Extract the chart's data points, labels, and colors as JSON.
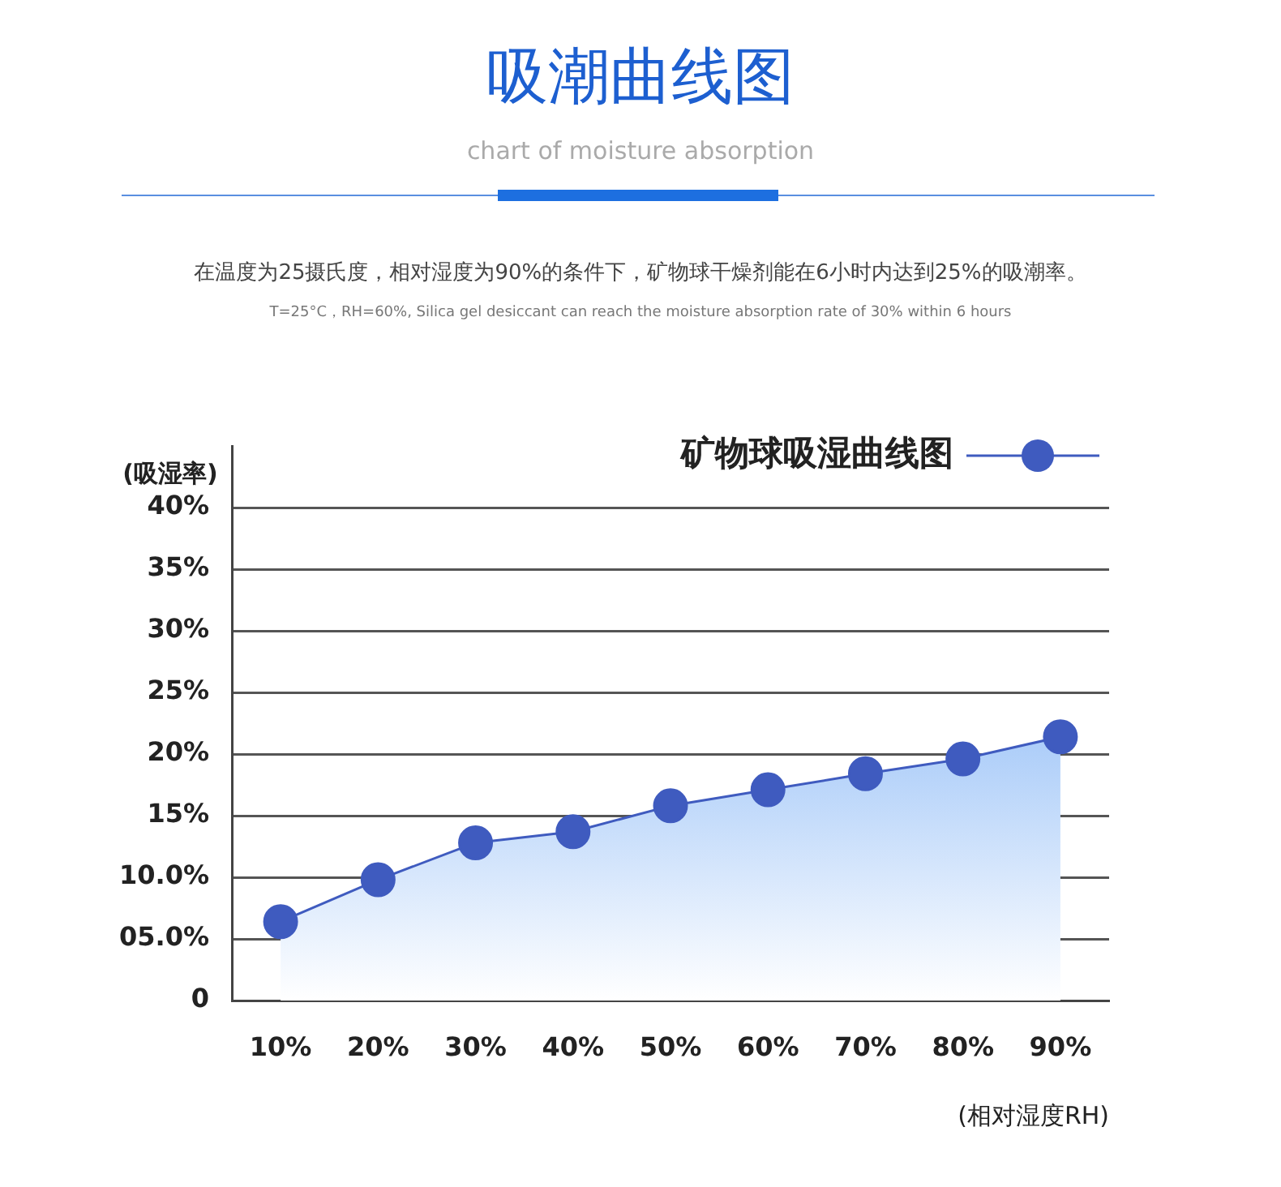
{
  "chart_data": {
    "type": "area",
    "title": "吸潮曲线图",
    "subtitle": "chart of moisture absorption",
    "annotations": [
      "在温度为25摄氏度，相对湿度为90%的条件下，矿物球干燥剂能在6小时内达到25%的吸潮率。",
      "T=25°C，RH=60%, Silica gel desiccant can reach the moisture absorption rate of 30% within 6 hours"
    ],
    "xlabel": "(相对湿度RH)",
    "ylabel": "(吸湿率)",
    "categories": [
      "10%",
      "20%",
      "30%",
      "40%",
      "50%",
      "60%",
      "70%",
      "80%",
      "90%"
    ],
    "series": [
      {
        "name": "矿物球吸湿曲线图",
        "color": "#3f5bbf",
        "values": [
          6.4,
          9.8,
          12.8,
          13.7,
          15.8,
          17.1,
          18.4,
          19.6,
          21.4
        ]
      }
    ],
    "ylim": [
      0,
      45
    ],
    "yticks": [
      {
        "value": 0,
        "label": "0"
      },
      {
        "value": 5,
        "label": "05.0%"
      },
      {
        "value": 10,
        "label": "10.0%"
      },
      {
        "value": 15,
        "label": "15%"
      },
      {
        "value": 20,
        "label": "20%"
      },
      {
        "value": 25,
        "label": "25%"
      },
      {
        "value": 30,
        "label": "30%"
      },
      {
        "value": 35,
        "label": "35%"
      },
      {
        "value": 40,
        "label": "40%"
      }
    ],
    "grid": "y",
    "legend": "top right",
    "marker": "circle"
  }
}
